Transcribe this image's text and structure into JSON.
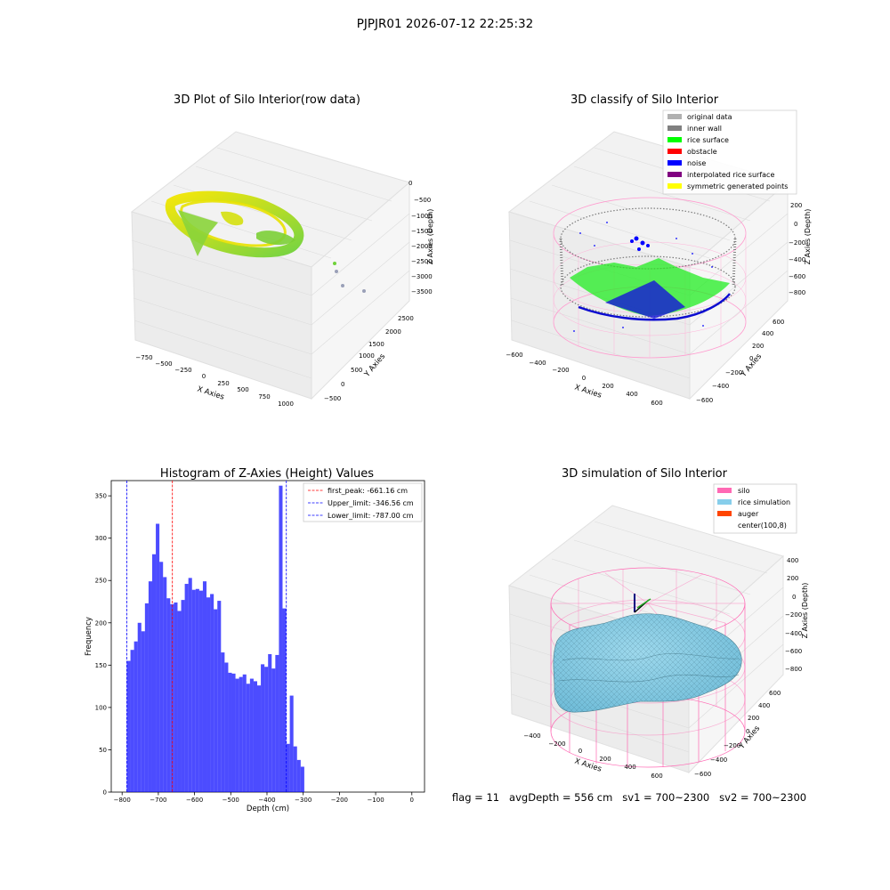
{
  "figure": {
    "suptitle": "PJPJR01 2026-07-12 22:25:32",
    "footer": "flag = 11   avgDepth = 556 cm   sv1 = 700~2300   sv2 = 700~2300"
  },
  "chart_data": [
    {
      "type": "scatter",
      "panel": "3d-raw",
      "title": "3D Plot of Silo Interior(row data)",
      "xlabel": "X Axies",
      "ylabel": "Y Axies",
      "zlabel": "Z Axies (Depth)",
      "xticks": [
        "−750",
        "−500",
        "−250",
        "0",
        "250",
        "500",
        "750",
        "1000"
      ],
      "yticks": [
        "−500",
        "0",
        "500",
        "1000",
        "1500",
        "2000",
        "2500"
      ],
      "zticks": [
        "0",
        "−500",
        "−1000",
        "−1500",
        "−2000",
        "−2500",
        "−3000",
        "−3500"
      ],
      "colormap": [
        "#f2e400",
        "#7ad22c"
      ]
    },
    {
      "type": "scatter",
      "panel": "3d-classify",
      "title": "3D classify of Silo Interior",
      "xlabel": "X Axies",
      "ylabel": "Y Axies",
      "zlabel": "Z Axies (Depth)",
      "xticks": [
        "−600",
        "−400",
        "−200",
        "0",
        "200",
        "400",
        "600"
      ],
      "yticks": [
        "−600",
        "−400",
        "−200",
        "0",
        "200",
        "400",
        "600"
      ],
      "zticks": [
        "200",
        "0",
        "−200",
        "−400",
        "−600",
        "−800"
      ],
      "legend": [
        {
          "label": "original data",
          "color": "#b0b0b0"
        },
        {
          "label": "inner wall",
          "color": "#808080"
        },
        {
          "label": "rice surface",
          "color": "#00ff00"
        },
        {
          "label": "obstacle",
          "color": "#ff0000"
        },
        {
          "label": "noise",
          "color": "#0000ff"
        },
        {
          "label": "interpolated rice surface",
          "color": "#800080"
        },
        {
          "label": "symmetric generated points",
          "color": "#ffff00"
        }
      ],
      "legend_placement": "top-right"
    },
    {
      "type": "bar",
      "panel": "histogram",
      "title": "Histogram of Z-Axies (Height) Values",
      "xlabel": "Depth (cm)",
      "ylabel": "Frequency",
      "bar_color": "#0000ff",
      "bin_width": 10,
      "bin_edges_start": -787,
      "values": [
        155,
        168,
        178,
        200,
        190,
        223,
        249,
        281,
        317,
        272,
        254,
        229,
        222,
        224,
        214,
        227,
        246,
        253,
        239,
        240,
        238,
        249,
        230,
        234,
        216,
        226,
        165,
        153,
        141,
        140,
        134,
        136,
        139,
        128,
        134,
        131,
        126,
        151,
        148,
        163,
        146,
        162,
        362,
        217,
        57,
        114,
        54,
        38,
        30
      ],
      "xlim": [
        -830,
        35
      ],
      "ylim": [
        0,
        368
      ],
      "xticks": [
        -800,
        -700,
        -600,
        -500,
        -400,
        -300,
        -200,
        -100,
        0
      ],
      "yticks": [
        0,
        50,
        100,
        150,
        200,
        250,
        300,
        350
      ],
      "vlines": [
        {
          "label": "first_peak: -661.16 cm",
          "x": -661.16,
          "color": "#ff0000"
        },
        {
          "label": "Upper_limit: -346.56 cm",
          "x": -346.56,
          "color": "#0000ff"
        },
        {
          "label": "Lower_limit: -787.00 cm",
          "x": -787.0,
          "color": "#0000ff"
        }
      ],
      "legend_placement": "top-right"
    },
    {
      "type": "area",
      "panel": "3d-simulation",
      "title": "3D simulation of Silo Interior",
      "xlabel": "X Axies",
      "ylabel": "Y Axies",
      "zlabel": "Z Axies (Depth)",
      "xticks": [
        "−400",
        "−200",
        "0",
        "200",
        "400",
        "600"
      ],
      "yticks": [
        "−600",
        "−400",
        "−200",
        "0",
        "200",
        "400",
        "600"
      ],
      "zticks": [
        "400",
        "200",
        "0",
        "−200",
        "−400",
        "−600",
        "−800"
      ],
      "legend": [
        {
          "label": "silo",
          "color": "#ff69b4"
        },
        {
          "label": "rice simulation",
          "color": "#87ceeb"
        },
        {
          "label": "auger",
          "color": "#ff4500"
        },
        {
          "label": "center(100,8)",
          "color": ""
        }
      ],
      "legend_placement": "top-right"
    }
  ]
}
